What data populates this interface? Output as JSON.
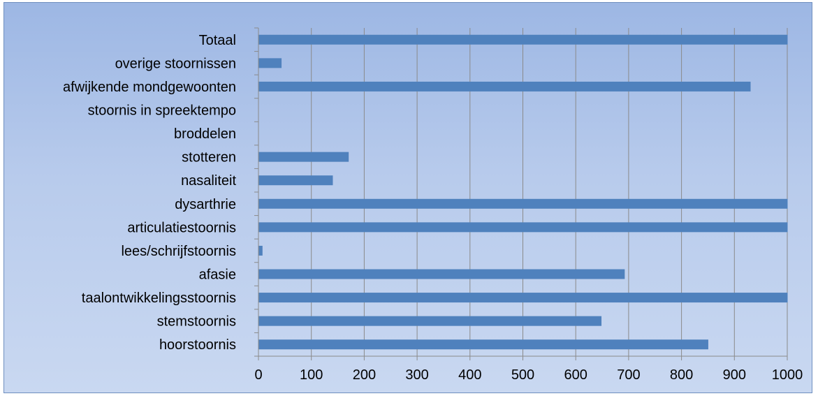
{
  "chart_data": {
    "type": "bar",
    "orientation": "horizontal",
    "categories": [
      "Totaal",
      "overige stoornissen",
      "afwijkende mondgewoonten",
      "stoornis in spreektempo",
      "broddelen",
      "stotteren",
      "nasaliteit",
      "dysarthrie",
      "articulatiestoornis",
      "lees/schrijfstoornis",
      "afasie",
      "taalontwikkelingsstoornis",
      "stemstoornis",
      "hoorstoornis"
    ],
    "values": [
      1000,
      43,
      930,
      0,
      0,
      170,
      140,
      1000,
      1000,
      7,
      692,
      1000,
      648,
      850
    ],
    "xlim": [
      0,
      1000
    ],
    "x_ticks": [
      "0",
      "100",
      "200",
      "300",
      "400",
      "500",
      "600",
      "700",
      "800",
      "900",
      "1000"
    ],
    "grid": "vertical",
    "bar_color": "#4f81bd",
    "background_color": "#b8cbec"
  }
}
